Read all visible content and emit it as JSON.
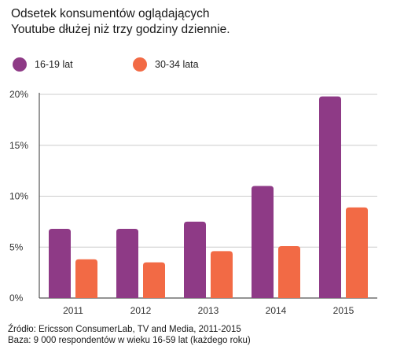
{
  "title_lines": [
    "Odsetek konsumentów oglądających",
    "Youtube dłużej niż trzy godziny dziennie."
  ],
  "colors": {
    "series1": "#8e3a86",
    "series2": "#f26a45",
    "axis": "#555555",
    "grid": "#cccccc"
  },
  "chart_data": {
    "type": "bar",
    "title": "Odsetek konsumentów oglądających Youtube dłużej niż trzy godziny dziennie.",
    "categories": [
      "2011",
      "2012",
      "2013",
      "2014",
      "2015"
    ],
    "series": [
      {
        "name": "16-19 lat",
        "values": [
          6.8,
          6.8,
          7.5,
          11.0,
          19.8
        ]
      },
      {
        "name": "30-34 lata",
        "values": [
          3.8,
          3.5,
          4.6,
          5.1,
          8.9
        ]
      }
    ],
    "ylim": [
      0,
      20
    ],
    "yticks": [
      "0%",
      "5%",
      "10%",
      "15%",
      "20%"
    ],
    "ytick_values": [
      0,
      5,
      10,
      15,
      20
    ],
    "grid": true,
    "legend": "top-left",
    "xlabel": "",
    "ylabel": ""
  },
  "footer": {
    "source": "Źródło: Ericsson ConsumerLab, TV and Media, 2011-2015",
    "base": "Baza: 9 000 respondentów w wieku 16-59 lat (każdego roku)"
  }
}
